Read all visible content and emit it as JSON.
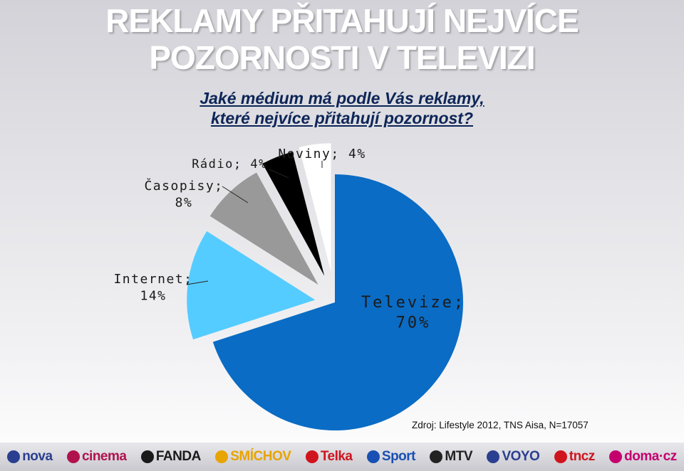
{
  "title_line1": "REKLAMY PŘITAHUJÍ NEJVÍCE",
  "title_line2": "POZORNOSTI V TELEVIZI",
  "question_line1": "Jaké médium má podle Vás reklamy,",
  "question_line2": "které nejvíce přitahují pozornost?",
  "source": "Zdroj: Lifestyle 2012, TNS Aisa, N=17057",
  "chart_data": {
    "type": "pie",
    "title": "",
    "slices": [
      {
        "label_top": "Televize;",
        "label_bottom": "70%",
        "value": 70,
        "color": "#0a6cc4"
      },
      {
        "label_top": "Internet;",
        "label_bottom": "14%",
        "value": 14,
        "color": "#55ccff"
      },
      {
        "label_top": "Časopisy;",
        "label_bottom": "8%",
        "value": 8,
        "color": "#999999"
      },
      {
        "label_top": "Rádio; 4%",
        "label_bottom": "",
        "value": 4,
        "color": "#000000"
      },
      {
        "label_top": "Noviny; 4%",
        "label_bottom": "",
        "value": 4,
        "color": "#ffffff"
      }
    ]
  },
  "footer_logos": [
    {
      "name": "nova-logo",
      "text": "nova",
      "color": "#2a3f8f"
    },
    {
      "name": "nova-cinema-logo",
      "text": "cinema",
      "color": "#b0124e"
    },
    {
      "name": "fanda-logo",
      "text": "FANDA",
      "color": "#1a1a1a"
    },
    {
      "name": "smichov-logo",
      "text": "SMÍCHOV",
      "color": "#e8a400"
    },
    {
      "name": "telka-logo",
      "text": "Telka",
      "color": "#d0141e"
    },
    {
      "name": "nova-sport-logo",
      "text": "Sport",
      "color": "#1a4fb3"
    },
    {
      "name": "mtv-logo",
      "text": "MTV",
      "color": "#222222"
    },
    {
      "name": "voyo-logo",
      "text": "VOYO",
      "color": "#2a3f8f"
    },
    {
      "name": "tncz-logo",
      "text": "tncz",
      "color": "#d0141e"
    },
    {
      "name": "doma-logo",
      "text": "doma·cz",
      "color": "#c4006e"
    }
  ]
}
